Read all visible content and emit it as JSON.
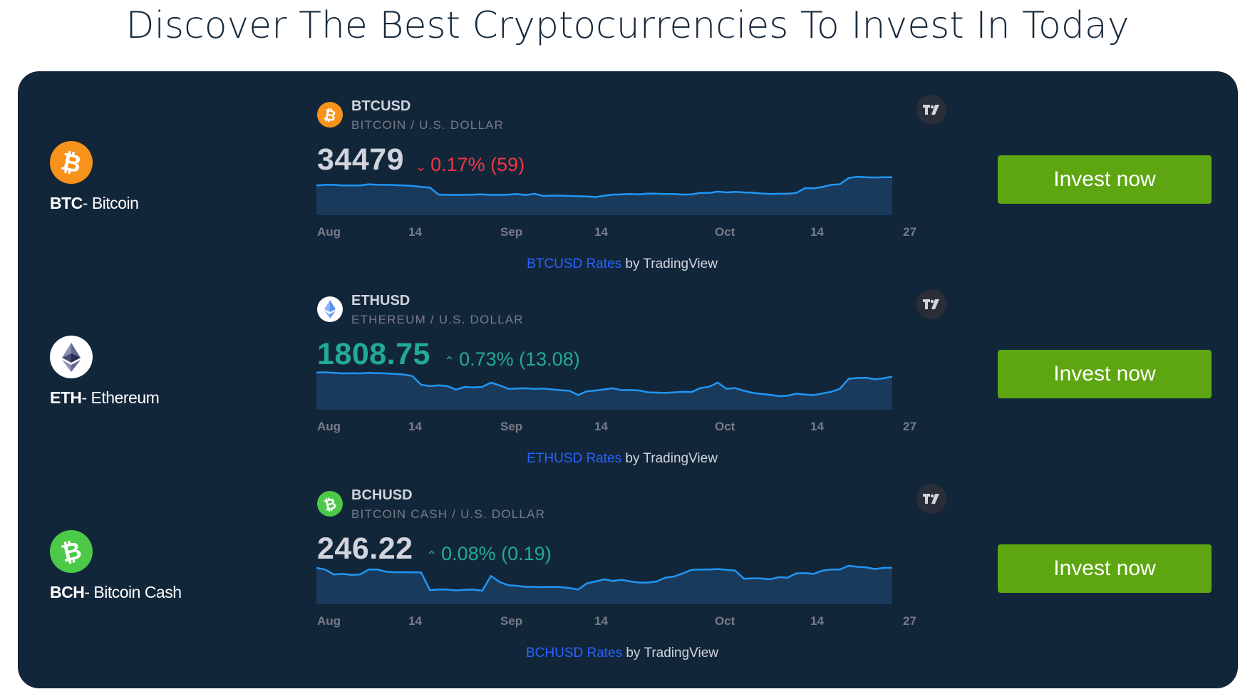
{
  "page": {
    "title": "Discover The Best Cryptocurrencies To Invest In Today"
  },
  "colors": {
    "panel_bg": "#12263a",
    "invest_button": "#5ea611",
    "positive": "#22ab94",
    "negative": "#f23645",
    "link": "#2962ff",
    "chart_line": "#2196f3",
    "btc_logo": "#f7931a",
    "eth_logo": "#ffffff",
    "bch_logo": "#4cc947"
  },
  "coins": [
    {
      "id": "btc",
      "logo_icon": "bitcoin-icon",
      "label_symbol": "BTC",
      "label_name": "- Bitcoin",
      "widget": {
        "symbol": "BTCUSD",
        "name": "BITCOIN / U.S. DOLLAR",
        "price": "34479",
        "direction": "down",
        "change_arrow": "⌄",
        "change": "0.17% (59)",
        "credit_link": "BTCUSD Rates",
        "credit_suffix": " by TradingView",
        "x_labels": [
          "Aug",
          "14",
          "Sep",
          "14",
          "Oct",
          "14",
          "27"
        ],
        "series": [
          0.68,
          0.7,
          0.7,
          0.68,
          0.68,
          0.68,
          0.72,
          0.7,
          0.7,
          0.69,
          0.68,
          0.66,
          0.62,
          0.6,
          0.34,
          0.33,
          0.33,
          0.33,
          0.34,
          0.35,
          0.33,
          0.33,
          0.34,
          0.36,
          0.32,
          0.37,
          0.29,
          0.3,
          0.3,
          0.29,
          0.28,
          0.27,
          0.25,
          0.3,
          0.34,
          0.35,
          0.36,
          0.35,
          0.38,
          0.37,
          0.36,
          0.36,
          0.34,
          0.35,
          0.4,
          0.4,
          0.45,
          0.42,
          0.44,
          0.42,
          0.41,
          0.38,
          0.36,
          0.37,
          0.37,
          0.4,
          0.58,
          0.57,
          0.62,
          0.7,
          0.72,
          0.95,
          1.0,
          0.98,
          0.97,
          0.98,
          0.98
        ]
      },
      "invest_label": "Invest now"
    },
    {
      "id": "eth",
      "logo_icon": "ethereum-icon",
      "label_symbol": "ETH",
      "label_name": "- Ethereum",
      "widget": {
        "symbol": "ETHUSD",
        "name": "ETHEREUM / U.S. DOLLAR",
        "price": "1808.75",
        "direction": "up",
        "change_arrow": "⌃",
        "change": "0.73% (13.08)",
        "credit_link": "ETHUSD Rates",
        "credit_suffix": " by TradingView",
        "x_labels": [
          "Aug",
          "14",
          "Sep",
          "14",
          "Oct",
          "14",
          "27"
        ],
        "series": [
          0.95,
          0.96,
          0.94,
          0.92,
          0.93,
          0.92,
          0.94,
          0.93,
          0.92,
          0.9,
          0.88,
          0.82,
          0.5,
          0.45,
          0.48,
          0.45,
          0.32,
          0.42,
          0.4,
          0.42,
          0.58,
          0.48,
          0.35,
          0.36,
          0.37,
          0.35,
          0.36,
          0.33,
          0.3,
          0.28,
          0.12,
          0.26,
          0.29,
          0.33,
          0.37,
          0.3,
          0.31,
          0.29,
          0.22,
          0.21,
          0.2,
          0.22,
          0.24,
          0.23,
          0.38,
          0.43,
          0.58,
          0.35,
          0.38,
          0.28,
          0.2,
          0.16,
          0.13,
          0.08,
          0.1,
          0.17,
          0.14,
          0.12,
          0.18,
          0.24,
          0.35,
          0.72,
          0.75,
          0.76,
          0.7,
          0.74,
          0.8
        ]
      },
      "invest_label": "Invest now"
    },
    {
      "id": "bch",
      "logo_icon": "bitcoin-cash-icon",
      "label_symbol": "BCH",
      "label_name": "- Bitcoin Cash",
      "widget": {
        "symbol": "BCHUSD",
        "name": "BITCOIN CASH / U.S. DOLLAR",
        "price": "246.22",
        "direction": "up",
        "change_arrow": "⌃",
        "change": "0.08% (0.19)",
        "credit_link": "BCHUSD Rates",
        "credit_suffix": " by TradingView",
        "x_labels": [
          "Aug",
          "14",
          "Sep",
          "14",
          "Oct",
          "14",
          "27"
        ],
        "series": [
          0.92,
          0.86,
          0.68,
          0.7,
          0.66,
          0.68,
          0.86,
          0.86,
          0.78,
          0.76,
          0.76,
          0.76,
          0.75,
          0.1,
          0.12,
          0.12,
          0.09,
          0.11,
          0.12,
          0.08,
          0.62,
          0.4,
          0.28,
          0.26,
          0.22,
          0.22,
          0.21,
          0.22,
          0.21,
          0.18,
          0.12,
          0.35,
          0.42,
          0.5,
          0.44,
          0.48,
          0.42,
          0.38,
          0.38,
          0.42,
          0.56,
          0.6,
          0.72,
          0.85,
          0.86,
          0.86,
          0.88,
          0.85,
          0.82,
          0.52,
          0.54,
          0.53,
          0.5,
          0.58,
          0.56,
          0.72,
          0.73,
          0.7,
          0.82,
          0.86,
          0.86,
          1.0,
          0.96,
          0.94,
          0.88,
          0.92,
          0.93
        ]
      },
      "invest_label": "Invest now"
    }
  ]
}
